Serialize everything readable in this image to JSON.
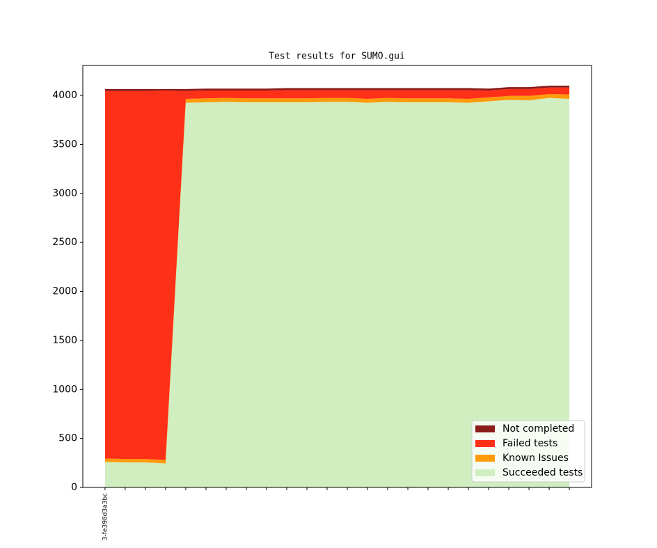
{
  "chart_data": {
    "type": "stacked_area",
    "title": "Test results for SUMO.gui",
    "categories": [
      "3-fe398d3a3bc",
      null,
      null,
      null,
      null,
      null,
      null,
      null,
      null,
      null,
      null,
      null,
      null,
      null,
      null,
      null,
      null,
      null,
      null,
      null,
      null,
      null,
      null,
      null
    ],
    "xlim": [
      -1.1,
      24.1
    ],
    "ylim": [
      0,
      4306
    ],
    "yticks": [
      0,
      500,
      1000,
      1500,
      2000,
      2500,
      3000,
      3500,
      4000
    ],
    "legend": "lower right",
    "series": [
      {
        "name": "Succeeded tests",
        "color": "#d0eec0",
        "values": [
          260,
          255,
          255,
          245,
          3925,
          3930,
          3935,
          3930,
          3930,
          3930,
          3930,
          3935,
          3935,
          3925,
          3935,
          3930,
          3930,
          3930,
          3925,
          3940,
          3955,
          3950,
          3975,
          3965
        ]
      },
      {
        "name": "Known Issues",
        "color": "#ff9a0a",
        "values": [
          35,
          35,
          35,
          35,
          40,
          40,
          40,
          40,
          40,
          40,
          40,
          40,
          40,
          40,
          40,
          40,
          40,
          40,
          40,
          40,
          40,
          45,
          40,
          45
        ]
      },
      {
        "name": "Failed tests",
        "color": "#ff3018",
        "values": [
          3750,
          3755,
          3755,
          3770,
          80,
          80,
          75,
          80,
          80,
          85,
          85,
          80,
          80,
          90,
          80,
          85,
          85,
          85,
          90,
          70,
          70,
          70,
          65,
          70
        ]
      },
      {
        "name": "Not completed",
        "color": "#8b1a1a",
        "values": [
          20,
          20,
          20,
          15,
          20,
          20,
          20,
          20,
          20,
          20,
          20,
          20,
          20,
          20,
          20,
          20,
          20,
          20,
          20,
          20,
          20,
          20,
          20,
          20
        ]
      }
    ]
  }
}
